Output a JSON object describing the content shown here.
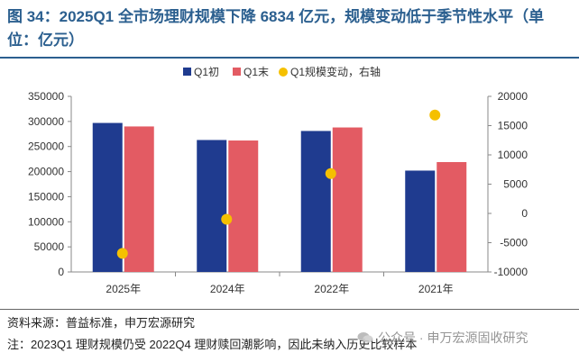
{
  "title": "图 34：2025Q1 全市场理财规模下降 6834 亿元，规模变动低于季节性水平（单位：亿元）",
  "source": "资料来源：普益标准，申万宏源研究",
  "note": "注：2023Q1 理财规模仍受 2022Q4 理财赎回潮影响，因此未纳入历史比较样本",
  "watermark": "公众号 · 申万宏源固收研究",
  "colors": {
    "q1_start": "#1f3b8f",
    "q1_end": "#e35b63",
    "change": "#f5c000",
    "title": "#2b5f8f"
  },
  "chart_data": {
    "type": "bar",
    "categories": [
      "2025年",
      "2024年",
      "2022年",
      "2021年"
    ],
    "series": [
      {
        "name": "Q1初",
        "type": "bar",
        "axis": "left",
        "values": [
          297000,
          263000,
          281000,
          202000
        ]
      },
      {
        "name": "Q1末",
        "type": "bar",
        "axis": "left",
        "values": [
          290000,
          262000,
          288000,
          219000
        ]
      },
      {
        "name": "Q1规模变动，右轴",
        "type": "scatter",
        "axis": "right",
        "values": [
          -6834,
          -1000,
          6800,
          16800
        ]
      }
    ],
    "left_axis": {
      "min": 0,
      "max": 350000,
      "ticks": [
        "0",
        "50000",
        "100000",
        "150000",
        "200000",
        "250000",
        "300000",
        "350000"
      ]
    },
    "right_axis": {
      "min": -10000,
      "max": 20000,
      "ticks": [
        "-10000",
        "-5000",
        "0",
        "5000",
        "10000",
        "15000",
        "20000"
      ]
    },
    "legend_position": "top",
    "grid": false
  }
}
